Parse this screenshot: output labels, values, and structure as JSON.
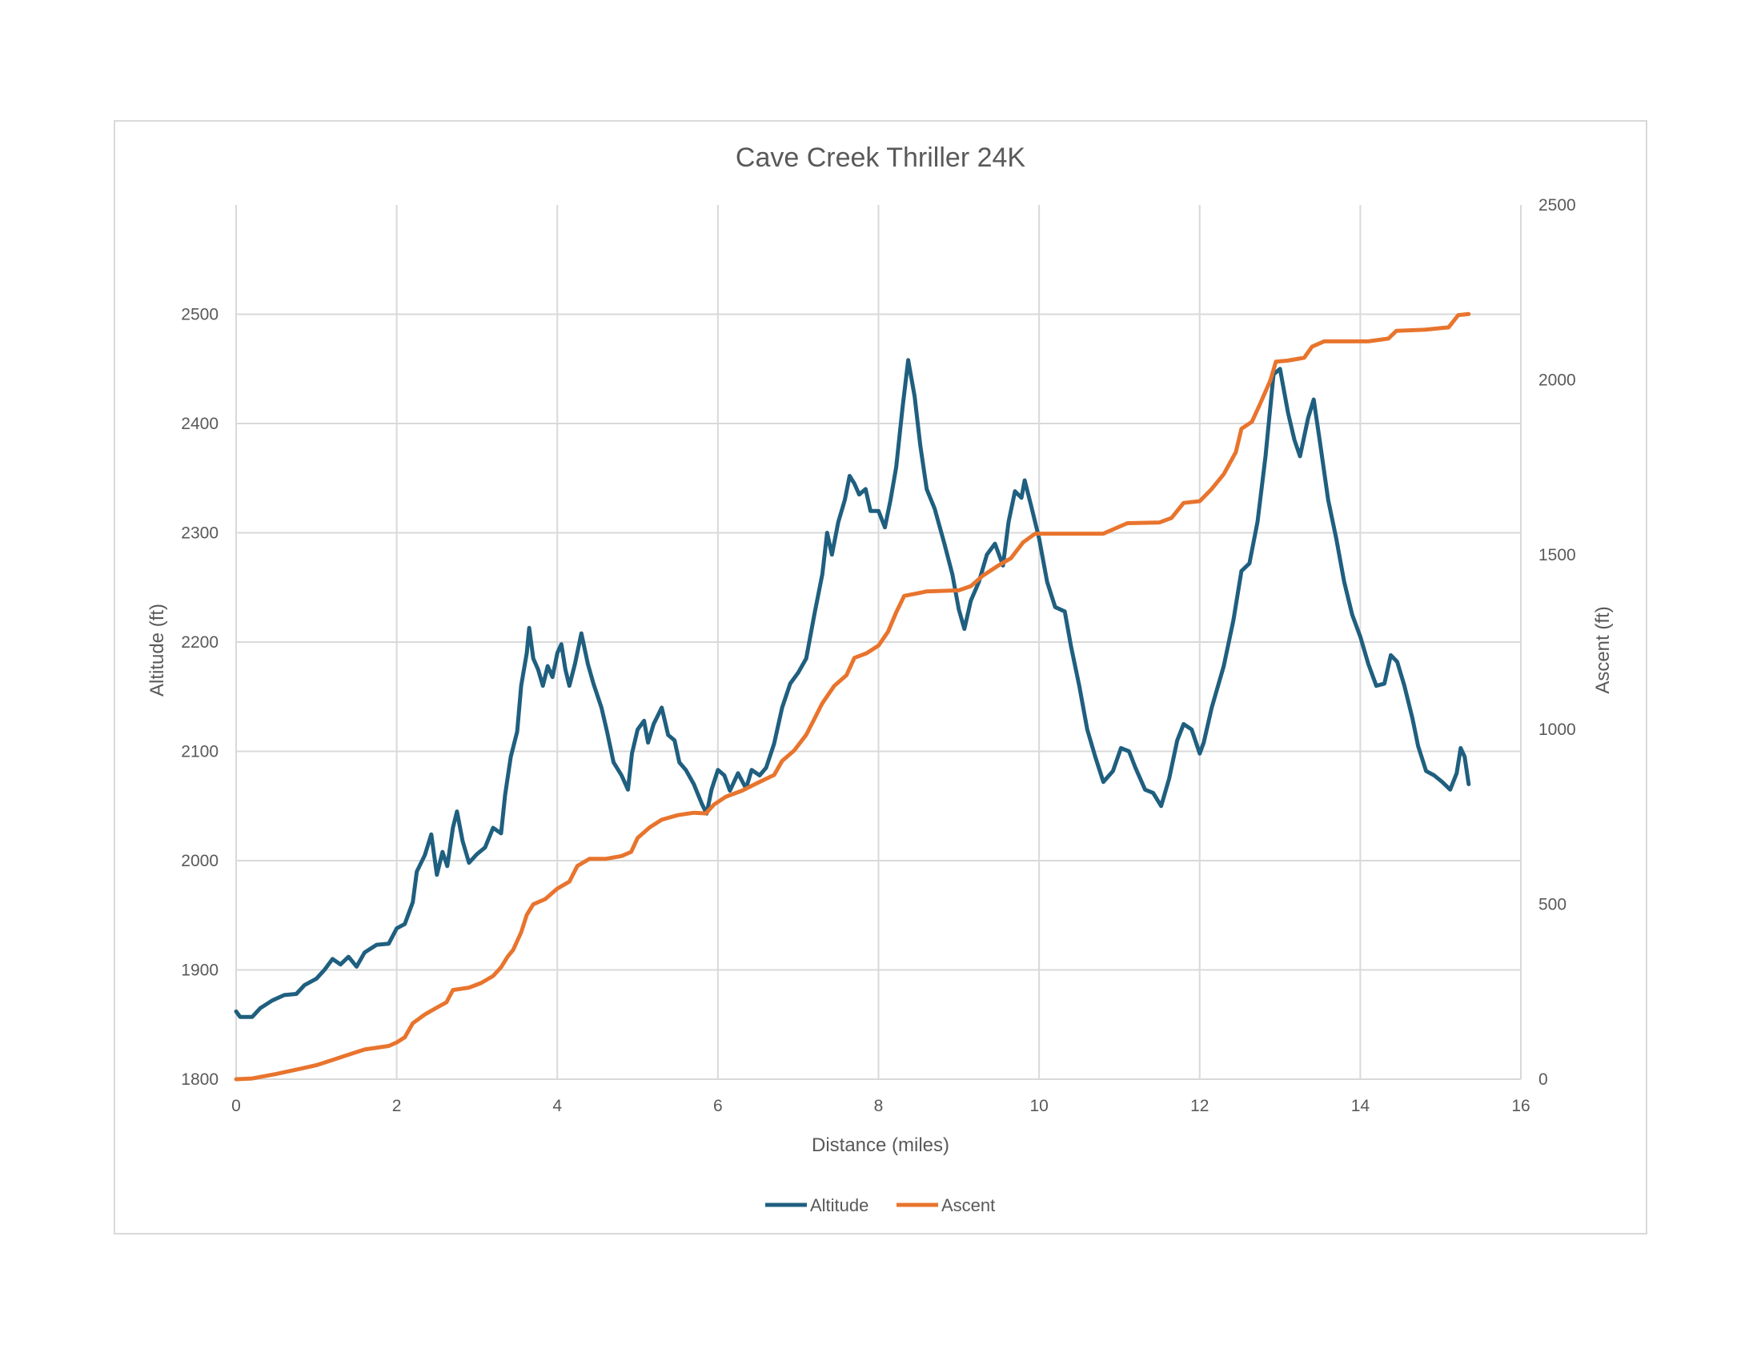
{
  "chart_data": {
    "type": "line",
    "title": "Cave Creek Thriller 24K",
    "xlabel": "Distance (miles)",
    "ylabel": "Altitude (ft)",
    "y2label": "Ascent (ft)",
    "xlim": [
      0,
      16
    ],
    "ylim": [
      1800,
      2600
    ],
    "y2lim": [
      0,
      2500
    ],
    "x_ticks": [
      0,
      2,
      4,
      6,
      8,
      10,
      12,
      14,
      16
    ],
    "y_ticks": [
      1800,
      1900,
      2000,
      2100,
      2200,
      2300,
      2400,
      2500
    ],
    "y2_ticks": [
      0,
      500,
      1000,
      1500,
      2000,
      2500
    ],
    "grid": true,
    "legend_position": "bottom",
    "series": [
      {
        "name": "Altitude",
        "axis": "left",
        "color": "#1f5f7f",
        "points": [
          [
            0,
            1862
          ],
          [
            0.05,
            1857
          ],
          [
            0.2,
            1857
          ],
          [
            0.3,
            1865
          ],
          [
            0.45,
            1872
          ],
          [
            0.6,
            1877
          ],
          [
            0.75,
            1878
          ],
          [
            0.85,
            1886
          ],
          [
            1.0,
            1892
          ],
          [
            1.1,
            1900
          ],
          [
            1.2,
            1910
          ],
          [
            1.3,
            1905
          ],
          [
            1.4,
            1912
          ],
          [
            1.5,
            1903
          ],
          [
            1.6,
            1916
          ],
          [
            1.75,
            1923
          ],
          [
            1.9,
            1924
          ],
          [
            2.0,
            1938
          ],
          [
            2.1,
            1942
          ],
          [
            2.2,
            1962
          ],
          [
            2.25,
            1990
          ],
          [
            2.35,
            2005
          ],
          [
            2.43,
            2024
          ],
          [
            2.5,
            1987
          ],
          [
            2.57,
            2008
          ],
          [
            2.63,
            1995
          ],
          [
            2.7,
            2030
          ],
          [
            2.75,
            2045
          ],
          [
            2.82,
            2018
          ],
          [
            2.9,
            1998
          ],
          [
            3.0,
            2006
          ],
          [
            3.1,
            2012
          ],
          [
            3.2,
            2030
          ],
          [
            3.3,
            2025
          ],
          [
            3.35,
            2060
          ],
          [
            3.42,
            2095
          ],
          [
            3.5,
            2118
          ],
          [
            3.55,
            2160
          ],
          [
            3.62,
            2190
          ],
          [
            3.65,
            2213
          ],
          [
            3.7,
            2185
          ],
          [
            3.76,
            2175
          ],
          [
            3.82,
            2160
          ],
          [
            3.88,
            2178
          ],
          [
            3.94,
            2168
          ],
          [
            4.0,
            2190
          ],
          [
            4.05,
            2198
          ],
          [
            4.1,
            2175
          ],
          [
            4.15,
            2160
          ],
          [
            4.22,
            2180
          ],
          [
            4.3,
            2208
          ],
          [
            4.38,
            2180
          ],
          [
            4.45,
            2162
          ],
          [
            4.55,
            2140
          ],
          [
            4.62,
            2118
          ],
          [
            4.7,
            2090
          ],
          [
            4.8,
            2078
          ],
          [
            4.88,
            2065
          ],
          [
            4.93,
            2098
          ],
          [
            5.0,
            2120
          ],
          [
            5.08,
            2128
          ],
          [
            5.13,
            2108
          ],
          [
            5.2,
            2125
          ],
          [
            5.3,
            2140
          ],
          [
            5.38,
            2115
          ],
          [
            5.46,
            2110
          ],
          [
            5.52,
            2090
          ],
          [
            5.6,
            2083
          ],
          [
            5.7,
            2070
          ],
          [
            5.8,
            2052
          ],
          [
            5.86,
            2043
          ],
          [
            5.92,
            2065
          ],
          [
            6.0,
            2083
          ],
          [
            6.08,
            2078
          ],
          [
            6.15,
            2064
          ],
          [
            6.25,
            2080
          ],
          [
            6.35,
            2066
          ],
          [
            6.42,
            2083
          ],
          [
            6.52,
            2078
          ],
          [
            6.6,
            2085
          ],
          [
            6.7,
            2107
          ],
          [
            6.8,
            2140
          ],
          [
            6.9,
            2162
          ],
          [
            7.0,
            2172
          ],
          [
            7.1,
            2185
          ],
          [
            7.2,
            2225
          ],
          [
            7.3,
            2262
          ],
          [
            7.36,
            2300
          ],
          [
            7.42,
            2280
          ],
          [
            7.5,
            2310
          ],
          [
            7.58,
            2330
          ],
          [
            7.64,
            2352
          ],
          [
            7.7,
            2345
          ],
          [
            7.76,
            2335
          ],
          [
            7.84,
            2340
          ],
          [
            7.9,
            2320
          ],
          [
            8.0,
            2320
          ],
          [
            8.08,
            2305
          ],
          [
            8.15,
            2330
          ],
          [
            8.22,
            2360
          ],
          [
            8.3,
            2415
          ],
          [
            8.37,
            2458
          ],
          [
            8.45,
            2425
          ],
          [
            8.52,
            2380
          ],
          [
            8.6,
            2340
          ],
          [
            8.7,
            2322
          ],
          [
            8.82,
            2290
          ],
          [
            8.92,
            2262
          ],
          [
            9.0,
            2230
          ],
          [
            9.07,
            2212
          ],
          [
            9.15,
            2238
          ],
          [
            9.25,
            2255
          ],
          [
            9.35,
            2280
          ],
          [
            9.45,
            2290
          ],
          [
            9.55,
            2270
          ],
          [
            9.62,
            2310
          ],
          [
            9.7,
            2338
          ],
          [
            9.78,
            2332
          ],
          [
            9.82,
            2348
          ],
          [
            9.9,
            2325
          ],
          [
            10.0,
            2295
          ],
          [
            10.1,
            2255
          ],
          [
            10.2,
            2232
          ],
          [
            10.32,
            2228
          ],
          [
            10.4,
            2195
          ],
          [
            10.5,
            2160
          ],
          [
            10.6,
            2120
          ],
          [
            10.7,
            2095
          ],
          [
            10.8,
            2072
          ],
          [
            10.92,
            2082
          ],
          [
            11.02,
            2103
          ],
          [
            11.12,
            2100
          ],
          [
            11.2,
            2085
          ],
          [
            11.32,
            2065
          ],
          [
            11.42,
            2062
          ],
          [
            11.52,
            2050
          ],
          [
            11.62,
            2075
          ],
          [
            11.72,
            2110
          ],
          [
            11.8,
            2125
          ],
          [
            11.9,
            2120
          ],
          [
            12.0,
            2098
          ],
          [
            12.05,
            2108
          ],
          [
            12.15,
            2140
          ],
          [
            12.3,
            2178
          ],
          [
            12.42,
            2220
          ],
          [
            12.52,
            2265
          ],
          [
            12.62,
            2272
          ],
          [
            12.72,
            2310
          ],
          [
            12.82,
            2370
          ],
          [
            12.92,
            2445
          ],
          [
            13.0,
            2450
          ],
          [
            13.1,
            2410
          ],
          [
            13.18,
            2385
          ],
          [
            13.25,
            2370
          ],
          [
            13.35,
            2405
          ],
          [
            13.42,
            2422
          ],
          [
            13.5,
            2382
          ],
          [
            13.6,
            2330
          ],
          [
            13.7,
            2295
          ],
          [
            13.8,
            2255
          ],
          [
            13.9,
            2225
          ],
          [
            14.0,
            2205
          ],
          [
            14.1,
            2180
          ],
          [
            14.2,
            2160
          ],
          [
            14.3,
            2162
          ],
          [
            14.38,
            2188
          ],
          [
            14.46,
            2182
          ],
          [
            14.55,
            2160
          ],
          [
            14.65,
            2130
          ],
          [
            14.72,
            2105
          ],
          [
            14.82,
            2082
          ],
          [
            14.92,
            2078
          ],
          [
            15.02,
            2072
          ],
          [
            15.12,
            2065
          ],
          [
            15.2,
            2080
          ],
          [
            15.25,
            2103
          ],
          [
            15.3,
            2095
          ],
          [
            15.35,
            2070
          ]
        ]
      },
      {
        "name": "Ascent",
        "axis": "right",
        "color": "#e8742d",
        "points": [
          [
            0,
            0
          ],
          [
            0.2,
            2
          ],
          [
            0.5,
            15
          ],
          [
            0.8,
            30
          ],
          [
            1.0,
            40
          ],
          [
            1.2,
            55
          ],
          [
            1.4,
            70
          ],
          [
            1.6,
            85
          ],
          [
            1.9,
            95
          ],
          [
            2.0,
            105
          ],
          [
            2.1,
            120
          ],
          [
            2.2,
            160
          ],
          [
            2.35,
            185
          ],
          [
            2.5,
            205
          ],
          [
            2.62,
            220
          ],
          [
            2.7,
            255
          ],
          [
            2.9,
            262
          ],
          [
            3.05,
            275
          ],
          [
            3.2,
            295
          ],
          [
            3.3,
            320
          ],
          [
            3.38,
            350
          ],
          [
            3.45,
            370
          ],
          [
            3.55,
            420
          ],
          [
            3.62,
            470
          ],
          [
            3.7,
            500
          ],
          [
            3.85,
            515
          ],
          [
            4.0,
            545
          ],
          [
            4.15,
            565
          ],
          [
            4.25,
            610
          ],
          [
            4.4,
            630
          ],
          [
            4.6,
            630
          ],
          [
            4.8,
            638
          ],
          [
            4.92,
            650
          ],
          [
            5.0,
            690
          ],
          [
            5.15,
            720
          ],
          [
            5.3,
            742
          ],
          [
            5.5,
            755
          ],
          [
            5.7,
            762
          ],
          [
            5.85,
            760
          ],
          [
            5.95,
            785
          ],
          [
            6.1,
            808
          ],
          [
            6.3,
            825
          ],
          [
            6.5,
            848
          ],
          [
            6.7,
            870
          ],
          [
            6.8,
            910
          ],
          [
            6.95,
            940
          ],
          [
            7.1,
            985
          ],
          [
            7.2,
            1030
          ],
          [
            7.3,
            1075
          ],
          [
            7.45,
            1125
          ],
          [
            7.6,
            1155
          ],
          [
            7.7,
            1205
          ],
          [
            7.85,
            1218
          ],
          [
            8.0,
            1240
          ],
          [
            8.12,
            1280
          ],
          [
            8.22,
            1335
          ],
          [
            8.32,
            1382
          ],
          [
            8.5,
            1390
          ],
          [
            8.6,
            1395
          ],
          [
            9.0,
            1398
          ],
          [
            9.15,
            1410
          ],
          [
            9.3,
            1440
          ],
          [
            9.5,
            1470
          ],
          [
            9.65,
            1490
          ],
          [
            9.8,
            1535
          ],
          [
            9.95,
            1560
          ],
          [
            10.2,
            1560
          ],
          [
            10.5,
            1560
          ],
          [
            10.8,
            1560
          ],
          [
            10.95,
            1575
          ],
          [
            11.1,
            1590
          ],
          [
            11.5,
            1592
          ],
          [
            11.65,
            1605
          ],
          [
            11.8,
            1648
          ],
          [
            12.0,
            1653
          ],
          [
            12.15,
            1688
          ],
          [
            12.3,
            1730
          ],
          [
            12.45,
            1793
          ],
          [
            12.52,
            1860
          ],
          [
            12.65,
            1880
          ],
          [
            12.75,
            1930
          ],
          [
            12.88,
            1998
          ],
          [
            12.95,
            2052
          ],
          [
            13.1,
            2055
          ],
          [
            13.3,
            2063
          ],
          [
            13.4,
            2095
          ],
          [
            13.55,
            2110
          ],
          [
            13.8,
            2110
          ],
          [
            14.1,
            2110
          ],
          [
            14.35,
            2118
          ],
          [
            14.45,
            2140
          ],
          [
            14.8,
            2143
          ],
          [
            15.1,
            2150
          ],
          [
            15.22,
            2185
          ],
          [
            15.35,
            2188
          ]
        ]
      }
    ]
  }
}
